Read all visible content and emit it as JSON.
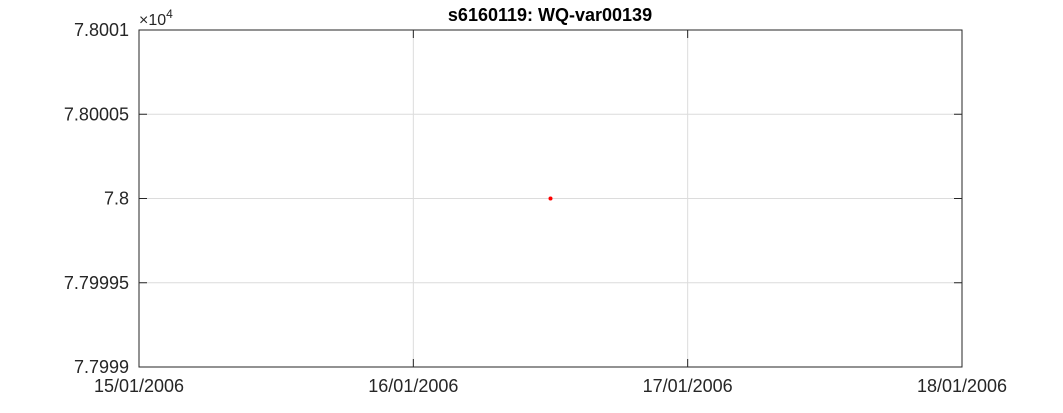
{
  "chart_data": {
    "type": "scatter",
    "title": "s6160119: WQ-var00139",
    "xlabel": "",
    "ylabel": "",
    "y_multiplier_label": "×10",
    "y_multiplier_exponent": "4",
    "x_tick_labels": [
      "15/01/2006",
      "16/01/2006",
      "17/01/2006",
      "18/01/2006"
    ],
    "xlim": [
      "2006-01-15",
      "2006-01-18"
    ],
    "y_tick_values": [
      7.7999,
      7.79995,
      7.8,
      7.80005,
      7.8001
    ],
    "y_tick_labels": [
      "7.7999",
      "7.79995",
      "7.8",
      "7.80005",
      "7.8001"
    ],
    "ylim": [
      7.7999,
      7.8001
    ],
    "grid": true,
    "series": [
      {
        "color": "#ff0000",
        "points": [
          {
            "x": "2006-01-16 12:00",
            "y": 7.8
          }
        ]
      }
    ]
  }
}
